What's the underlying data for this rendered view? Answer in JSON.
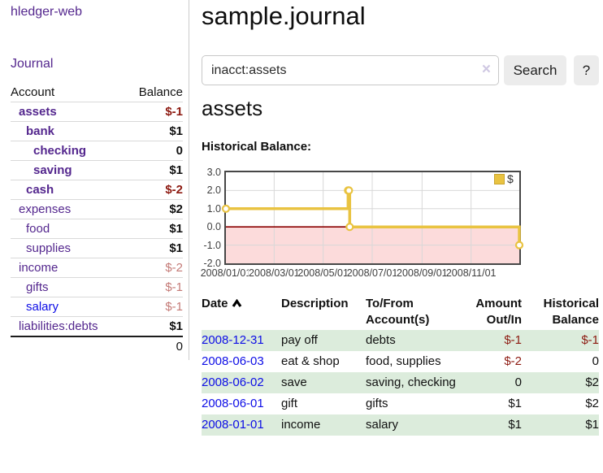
{
  "sidebar": {
    "app_title": "hledger-web",
    "journal_link": "Journal",
    "accounts": {
      "col_account": "Account",
      "col_balance": "Balance",
      "rows": [
        {
          "name": "assets",
          "indent": 1,
          "bold": true,
          "balance": "$-1",
          "neg": "strong"
        },
        {
          "name": "bank",
          "indent": 2,
          "bold": true,
          "balance": "$1"
        },
        {
          "name": "checking",
          "indent": 3,
          "bold": true,
          "balance": "0"
        },
        {
          "name": "saving",
          "indent": 3,
          "bold": true,
          "balance": "$1"
        },
        {
          "name": "cash",
          "indent": 2,
          "bold": true,
          "balance": "$-2",
          "neg": "strong"
        },
        {
          "name": "expenses",
          "indent": 1,
          "bold": false,
          "balance": "$2"
        },
        {
          "name": "food",
          "indent": 2,
          "bold": false,
          "balance": "$1"
        },
        {
          "name": "supplies",
          "indent": 2,
          "bold": false,
          "balance": "$1"
        },
        {
          "name": "income",
          "indent": 1,
          "bold": false,
          "balance": "$-2",
          "neg": "muted"
        },
        {
          "name": "gifts",
          "indent": 2,
          "bold": false,
          "balance": "$-1",
          "neg": "muted"
        },
        {
          "name": "salary",
          "indent": 2,
          "bold": false,
          "balance": "$-1",
          "neg": "muted",
          "blue": true
        },
        {
          "name": "liabilities:debts",
          "indent": 1,
          "bold": false,
          "balance": "$1"
        }
      ],
      "total": "0"
    }
  },
  "main": {
    "title": "sample.journal",
    "search": {
      "value": "inacct:assets",
      "clear": "×",
      "button": "Search",
      "help": "?"
    },
    "account_heading": "assets",
    "chart_label": "Historical Balance:",
    "register": {
      "headers": {
        "date": "Date",
        "description": "Description",
        "account_line1": "To/From",
        "account_line2": "Account(s)",
        "amount_line1": "Amount",
        "amount_line2": "Out/In",
        "balance_line1": "Historical",
        "balance_line2": "Balance"
      },
      "rows": [
        {
          "date": "2008-12-31",
          "description": "pay off",
          "accounts": "debts",
          "amount": "$-1",
          "amount_neg": true,
          "balance": "$-1",
          "balance_neg": true
        },
        {
          "date": "2008-06-03",
          "description": "eat & shop",
          "accounts": "food, supplies",
          "amount": "$-2",
          "amount_neg": true,
          "balance": "0",
          "balance_neg": false
        },
        {
          "date": "2008-06-02",
          "description": "save",
          "accounts": "saving, checking",
          "amount": "0",
          "amount_neg": false,
          "balance": "$2",
          "balance_neg": false
        },
        {
          "date": "2008-06-01",
          "description": "gift",
          "accounts": "gifts",
          "amount": "$1",
          "amount_neg": false,
          "balance": "$2",
          "balance_neg": false
        },
        {
          "date": "2008-01-01",
          "description": "income",
          "accounts": "salary",
          "amount": "$1",
          "amount_neg": false,
          "balance": "$1",
          "balance_neg": false
        }
      ]
    }
  },
  "chart_data": {
    "type": "line",
    "title": "Historical Balance",
    "steps": true,
    "x": [
      "2008-01-01",
      "2008-06-01",
      "2008-06-02",
      "2008-06-03",
      "2008-12-31"
    ],
    "x_day_offsets": [
      0,
      152,
      153,
      154,
      365
    ],
    "series": [
      {
        "name": "$",
        "values": [
          1,
          2,
          2,
          0,
          -1
        ]
      }
    ],
    "xlim_days": [
      0,
      365
    ],
    "ylim": [
      -2,
      3
    ],
    "yticks": [
      {
        "v": 3,
        "label": "3.0"
      },
      {
        "v": 2,
        "label": "2.0"
      },
      {
        "v": 1,
        "label": "1.0"
      },
      {
        "v": 0,
        "label": "0.0"
      },
      {
        "v": -1,
        "label": "-1.0"
      },
      {
        "v": -2,
        "label": "-2.0"
      }
    ],
    "xticks": [
      {
        "day": 0,
        "label": "2008/01/01"
      },
      {
        "day": 60,
        "label": "2008/03/01"
      },
      {
        "day": 121,
        "label": "2008/05/01"
      },
      {
        "day": 182,
        "label": "2008/07/01"
      },
      {
        "day": 244,
        "label": "2008/09/01"
      },
      {
        "day": 305,
        "label": "2008/11/01"
      }
    ],
    "legend_position": "top-right",
    "grid": true,
    "style": {
      "line_color": "#e9c341",
      "point_fill": "#ffffff",
      "negative_region": "#fcdbdb",
      "zero_line": "#8b0000",
      "grid_color": "#d8d8d8",
      "border_color": "#474747"
    }
  },
  "colors": {
    "link_purple": "#54278e",
    "link_blue": "#0d0de6",
    "negative_strong": "#8d1a11",
    "negative_muted": "#c47a76",
    "row_green": "#dcecdc",
    "button_bg": "#ececec"
  }
}
